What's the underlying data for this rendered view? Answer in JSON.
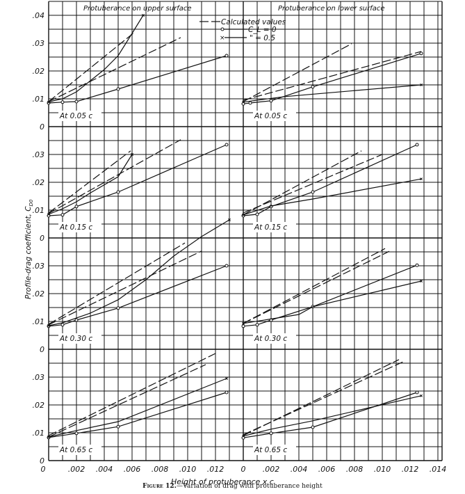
{
  "figure": {
    "caption_prefix": "Figure 12.",
    "caption_text": "—Variation of drag with protuberance height",
    "ylabel": "Profile-drag coefficient, C_D0",
    "xlabel": "Height of protuberance x c",
    "column_titles": [
      "Protuberance on upper surface",
      "Protuberance on lower surface"
    ],
    "legend": {
      "dashed": "Calculated values",
      "circle": "C_L = 0",
      "cross": "\" = 0.5"
    }
  },
  "chart_data": {
    "type": "line",
    "title": "Variation of drag with protuberance height",
    "xlabel": "Height of protuberance x c",
    "ylabel": "Profile-drag coefficient, C_D0",
    "grid": true,
    "layout": "4 rows x 2 columns of panels",
    "xlim": [
      0,
      0.014
    ],
    "ylim_per_panel": [
      0,
      0.04
    ],
    "x_ticks": [
      "0",
      ".002",
      ".004",
      ".006",
      ".008",
      ".010",
      ".012",
      ".014"
    ],
    "y_ticks": [
      "0",
      ".01",
      ".02",
      ".03",
      ".04"
    ],
    "legend_entries": [
      "Calculated values (dashed)",
      "C_L = 0 (circles)",
      "C_L = 0.5 (crosses)"
    ],
    "panels": [
      {
        "surface": "upper",
        "location": "At 0.05 c",
        "row": 0,
        "col": 0,
        "series": [
          {
            "name": "C_L = 0",
            "style": "solid",
            "marker": "o",
            "points": [
              [
                0,
                0.0085
              ],
              [
                0.001,
                0.0088
              ],
              [
                0.002,
                0.009
              ],
              [
                0.005,
                0.0135
              ],
              [
                0.0128,
                0.0255
              ]
            ]
          },
          {
            "name": "C_L = 0.5",
            "style": "solid",
            "marker": "x",
            "points": [
              [
                0,
                0.0088
              ],
              [
                0.0005,
                0.0095
              ],
              [
                0.001,
                0.01
              ],
              [
                0.002,
                0.0125
              ],
              [
                0.003,
                0.0165
              ],
              [
                0.004,
                0.0205
              ],
              [
                0.005,
                0.0255
              ],
              [
                0.006,
                0.0335
              ],
              [
                0.0068,
                0.04
              ]
            ]
          },
          {
            "name": "Calculated C_L = 0",
            "style": "dashed",
            "marker": "",
            "points": [
              [
                0,
                0.009
              ],
              [
                0.0095,
                0.032
              ]
            ]
          },
          {
            "name": "Calculated C_L = 0.5",
            "style": "dashed",
            "marker": "",
            "points": [
              [
                0,
                0.009
              ],
              [
                0.0062,
                0.034
              ]
            ]
          }
        ]
      },
      {
        "surface": "lower",
        "location": "At 0.05 c",
        "row": 0,
        "col": 1,
        "series": [
          {
            "name": "C_L = 0",
            "style": "solid",
            "marker": "o",
            "points": [
              [
                0,
                0.0082
              ],
              [
                0.0005,
                0.0085
              ],
              [
                0.002,
                0.0093
              ],
              [
                0.005,
                0.0143
              ],
              [
                0.0128,
                0.0263
              ]
            ]
          },
          {
            "name": "C_L = 0.5",
            "style": "solid",
            "marker": "x",
            "points": [
              [
                0,
                0.0088
              ],
              [
                0.001,
                0.0095
              ],
              [
                0.003,
                0.0108
              ],
              [
                0.0128,
                0.015
              ]
            ]
          },
          {
            "name": "Calculated C_L = 0.5",
            "style": "dashed",
            "marker": "",
            "points": [
              [
                0,
                0.009
              ],
              [
                0.0078,
                0.0298
              ]
            ]
          },
          {
            "name": "Calculated C_L = 0",
            "style": "dashed",
            "marker": "",
            "points": [
              [
                0,
                0.0095
              ],
              [
                0.0128,
                0.027
              ]
            ]
          }
        ]
      },
      {
        "surface": "upper",
        "location": "At 0.15 c",
        "row": 1,
        "col": 0,
        "series": [
          {
            "name": "C_L = 0",
            "style": "solid",
            "marker": "o",
            "points": [
              [
                0,
                0.008
              ],
              [
                0.001,
                0.0083
              ],
              [
                0.002,
                0.0113
              ],
              [
                0.005,
                0.0165
              ],
              [
                0.0128,
                0.0335
              ]
            ]
          },
          {
            "name": "C_L = 0.5",
            "style": "solid",
            "marker": "x",
            "points": [
              [
                0,
                0.0085
              ],
              [
                0.001,
                0.0105
              ],
              [
                0.002,
                0.013
              ],
              [
                0.003,
                0.0162
              ],
              [
                0.005,
                0.022
              ],
              [
                0.006,
                0.03
              ]
            ]
          },
          {
            "name": "Calculated C_L = 0.5",
            "style": "dashed",
            "marker": "",
            "points": [
              [
                0,
                0.009
              ],
              [
                0.0059,
                0.0313
              ]
            ]
          },
          {
            "name": "Calculated C_L = 0",
            "style": "dashed",
            "marker": "",
            "points": [
              [
                0,
                0.0088
              ],
              [
                0.0095,
                0.0353
              ]
            ]
          }
        ]
      },
      {
        "surface": "lower",
        "location": "At 0.15 c",
        "row": 1,
        "col": 1,
        "series": [
          {
            "name": "C_L = 0",
            "style": "solid",
            "marker": "o",
            "points": [
              [
                0,
                0.008
              ],
              [
                0.001,
                0.0085
              ],
              [
                0.002,
                0.0113
              ],
              [
                0.005,
                0.0165
              ],
              [
                0.0125,
                0.0335
              ]
            ]
          },
          {
            "name": "C_L = 0.5",
            "style": "solid",
            "marker": "x",
            "points": [
              [
                0,
                0.0083
              ],
              [
                0.002,
                0.0115
              ],
              [
                0.005,
                0.014
              ],
              [
                0.0128,
                0.0212
              ]
            ]
          },
          {
            "name": "Calculated C_L = 0.5",
            "style": "dashed",
            "marker": "",
            "points": [
              [
                0,
                0.0083
              ],
              [
                0.0085,
                0.0313
              ]
            ]
          },
          {
            "name": "Calculated C_L = 0",
            "style": "dashed",
            "marker": "",
            "points": [
              [
                0,
                0.009
              ],
              [
                0.01,
                0.03
              ]
            ]
          }
        ]
      },
      {
        "surface": "upper",
        "location": "At 0.30 c",
        "row": 2,
        "col": 0,
        "series": [
          {
            "name": "C_L = 0",
            "style": "solid",
            "marker": "o",
            "points": [
              [
                0,
                0.0083
              ],
              [
                0.001,
                0.0088
              ],
              [
                0.002,
                0.0105
              ],
              [
                0.005,
                0.0148
              ],
              [
                0.0128,
                0.03
              ]
            ]
          },
          {
            "name": "C_L = 0.5",
            "style": "solid",
            "marker": "x",
            "points": [
              [
                0,
                0.0085
              ],
              [
                0.001,
                0.0095
              ],
              [
                0.003,
                0.013
              ],
              [
                0.005,
                0.0178
              ],
              [
                0.007,
                0.025
              ],
              [
                0.009,
                0.0335
              ],
              [
                0.011,
                0.0405
              ],
              [
                0.013,
                0.0465
              ]
            ]
          },
          {
            "name": "Calculated C_L = 0.5",
            "style": "dashed",
            "marker": "",
            "points": [
              [
                0,
                0.009
              ],
              [
                0.0098,
                0.0382
              ]
            ]
          },
          {
            "name": "Calculated C_L = 0",
            "style": "dashed",
            "marker": "",
            "points": [
              [
                0,
                0.0088
              ],
              [
                0.011,
                0.0353
              ]
            ]
          }
        ]
      },
      {
        "surface": "lower",
        "location": "At 0.30 c",
        "row": 2,
        "col": 1,
        "series": [
          {
            "name": "C_L = 0",
            "style": "solid",
            "marker": "o",
            "points": [
              [
                0,
                0.0083
              ],
              [
                0.001,
                0.0088
              ],
              [
                0.002,
                0.0105
              ],
              [
                0.005,
                0.0153
              ],
              [
                0.0125,
                0.0302
              ]
            ]
          },
          {
            "name": "C_L = 0.5",
            "style": "solid",
            "marker": "x",
            "points": [
              [
                0,
                0.0093
              ],
              [
                0.004,
                0.0125
              ],
              [
                0.005,
                0.0153
              ],
              [
                0.0128,
                0.0245
              ]
            ]
          },
          {
            "name": "Calculated C_L = 0.5",
            "style": "dashed",
            "marker": "",
            "points": [
              [
                0,
                0.0093
              ],
              [
                0.0102,
                0.0362
              ]
            ]
          },
          {
            "name": "Calculated C_L = 0",
            "style": "dashed",
            "marker": "",
            "points": [
              [
                0,
                0.0093
              ],
              [
                0.0105,
                0.0352
              ]
            ]
          }
        ]
      },
      {
        "surface": "upper",
        "location": "At 0.65 c",
        "row": 3,
        "col": 0,
        "series": [
          {
            "name": "C_L = 0",
            "style": "solid",
            "marker": "o",
            "points": [
              [
                0,
                0.0083
              ],
              [
                0.002,
                0.0098
              ],
              [
                0.005,
                0.0122
              ],
              [
                0.0128,
                0.0245
              ]
            ]
          },
          {
            "name": "C_L = 0.5",
            "style": "solid",
            "marker": "x",
            "points": [
              [
                0,
                0.0085
              ],
              [
                0.002,
                0.0108
              ],
              [
                0.005,
                0.014
              ],
              [
                0.0128,
                0.0295
              ]
            ]
          },
          {
            "name": "Calculated C_L = 0.5",
            "style": "dashed",
            "marker": "",
            "points": [
              [
                0,
                0.009
              ],
              [
                0.012,
                0.0385
              ]
            ]
          },
          {
            "name": "Calculated C_L = 0",
            "style": "dashed",
            "marker": "",
            "points": [
              [
                0,
                0.0085
              ],
              [
                0.0113,
                0.0345
              ]
            ]
          }
        ]
      },
      {
        "surface": "lower",
        "location": "At 0.65 c",
        "row": 3,
        "col": 1,
        "series": [
          {
            "name": "C_L = 0",
            "style": "solid",
            "marker": "o",
            "points": [
              [
                0,
                0.0082
              ],
              [
                0.002,
                0.0098
              ],
              [
                0.005,
                0.012
              ],
              [
                0.0125,
                0.0245
              ]
            ]
          },
          {
            "name": "C_L = 0.5",
            "style": "solid",
            "marker": "x",
            "points": [
              [
                0,
                0.0088
              ],
              [
                0.002,
                0.0113
              ],
              [
                0.005,
                0.0143
              ],
              [
                0.0128,
                0.0233
              ]
            ]
          },
          {
            "name": "Calculated C_L = 0.5",
            "style": "dashed",
            "marker": "",
            "points": [
              [
                0,
                0.009
              ],
              [
                0.0112,
                0.0363
              ]
            ]
          },
          {
            "name": "Calculated C_L = 0",
            "style": "dashed",
            "marker": "",
            "points": [
              [
                0,
                0.0093
              ],
              [
                0.0115,
                0.0355
              ]
            ]
          }
        ]
      }
    ]
  }
}
